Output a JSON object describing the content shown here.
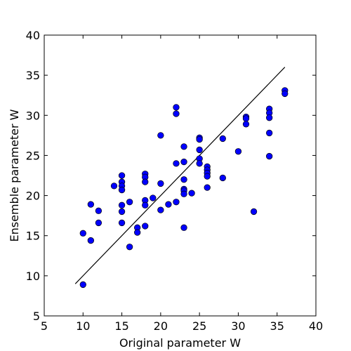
{
  "chart_data": {
    "type": "scatter",
    "title": "",
    "xlabel": "Original parameter W",
    "ylabel": "Ensemble parameter W",
    "xlim": [
      5,
      40
    ],
    "ylim": [
      5,
      40
    ],
    "xticks": [
      5,
      10,
      15,
      20,
      25,
      30,
      35,
      40
    ],
    "yticks": [
      5,
      10,
      15,
      20,
      25,
      30,
      35,
      40
    ],
    "grid": false,
    "legend": "none",
    "colors": {
      "marker_fill": "#0000ff",
      "marker_edge": "#000000",
      "line": "#000000",
      "axes": "#000000"
    },
    "series": [
      {
        "type": "scatter",
        "points": [
          [
            10,
            8.9
          ],
          [
            10,
            15.3
          ],
          [
            11,
            14.4
          ],
          [
            11,
            18.9
          ],
          [
            12,
            18.1
          ],
          [
            12,
            16.6
          ],
          [
            14,
            21.2
          ],
          [
            15,
            22.5
          ],
          [
            15,
            21.7
          ],
          [
            15,
            21.2
          ],
          [
            15,
            20.7
          ],
          [
            15,
            18.8
          ],
          [
            15,
            18.0
          ],
          [
            15,
            16.6
          ],
          [
            16,
            19.2
          ],
          [
            16,
            13.6
          ],
          [
            17,
            16.0
          ],
          [
            17,
            15.4
          ],
          [
            18,
            22.7
          ],
          [
            18,
            22.3
          ],
          [
            18,
            21.7
          ],
          [
            18,
            19.4
          ],
          [
            18,
            18.8
          ],
          [
            18,
            16.2
          ],
          [
            19,
            19.7
          ],
          [
            20,
            27.5
          ],
          [
            20,
            21.5
          ],
          [
            20,
            18.2
          ],
          [
            21,
            18.9
          ],
          [
            22,
            31.0
          ],
          [
            22,
            30.2
          ],
          [
            22,
            24.0
          ],
          [
            22,
            19.2
          ],
          [
            23,
            26.1
          ],
          [
            23,
            24.2
          ],
          [
            23,
            22.0
          ],
          [
            23,
            20.8
          ],
          [
            23,
            20.6
          ],
          [
            23,
            20.2
          ],
          [
            23,
            16.0
          ],
          [
            24,
            20.3
          ],
          [
            25,
            27.2
          ],
          [
            25,
            27.0
          ],
          [
            25,
            25.7
          ],
          [
            25,
            24.6
          ],
          [
            25,
            24.0
          ],
          [
            26,
            23.6
          ],
          [
            26,
            23.2
          ],
          [
            26,
            22.8
          ],
          [
            26,
            22.4
          ],
          [
            26,
            21.0
          ],
          [
            28,
            27.1
          ],
          [
            28,
            22.2
          ],
          [
            30,
            25.5
          ],
          [
            31,
            29.8
          ],
          [
            31,
            29.6
          ],
          [
            31,
            28.9
          ],
          [
            32,
            18.0
          ],
          [
            34,
            30.8
          ],
          [
            34,
            30.3
          ],
          [
            34,
            29.7
          ],
          [
            34,
            27.8
          ],
          [
            34,
            24.9
          ],
          [
            36,
            33.1
          ],
          [
            36,
            32.7
          ]
        ]
      },
      {
        "type": "line",
        "points": [
          [
            9,
            9
          ],
          [
            36,
            36
          ]
        ]
      }
    ]
  }
}
